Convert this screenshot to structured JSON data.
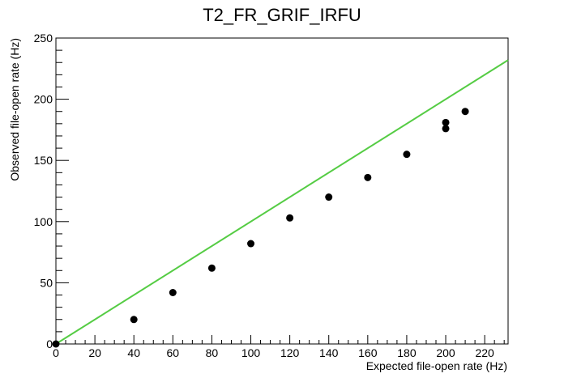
{
  "chart_data": {
    "type": "scatter",
    "title": "T2_FR_GRIF_IRFU",
    "xlabel": "Expected file-open rate (Hz)",
    "ylabel": "Observed file-open rate (Hz)",
    "xlim": [
      0,
      232
    ],
    "ylim": [
      0,
      250
    ],
    "xticks": [
      0,
      20,
      40,
      60,
      80,
      100,
      120,
      140,
      160,
      180,
      200,
      220
    ],
    "yticks": [
      0,
      50,
      100,
      150,
      200,
      250
    ],
    "grid": false,
    "series": [
      {
        "type": "scatter",
        "color": "#000000",
        "points": [
          {
            "x": 0,
            "y": 0
          },
          {
            "x": 40,
            "y": 20
          },
          {
            "x": 60,
            "y": 42
          },
          {
            "x": 80,
            "y": 62
          },
          {
            "x": 100,
            "y": 82
          },
          {
            "x": 120,
            "y": 103
          },
          {
            "x": 140,
            "y": 120
          },
          {
            "x": 160,
            "y": 136
          },
          {
            "x": 180,
            "y": 155
          },
          {
            "x": 200,
            "y": 176
          },
          {
            "x": 200,
            "y": 181
          },
          {
            "x": 210,
            "y": 190
          }
        ]
      },
      {
        "type": "line",
        "color": "#55cc44",
        "points": [
          {
            "x": 0,
            "y": 0
          },
          {
            "x": 232,
            "y": 232
          }
        ]
      }
    ]
  }
}
